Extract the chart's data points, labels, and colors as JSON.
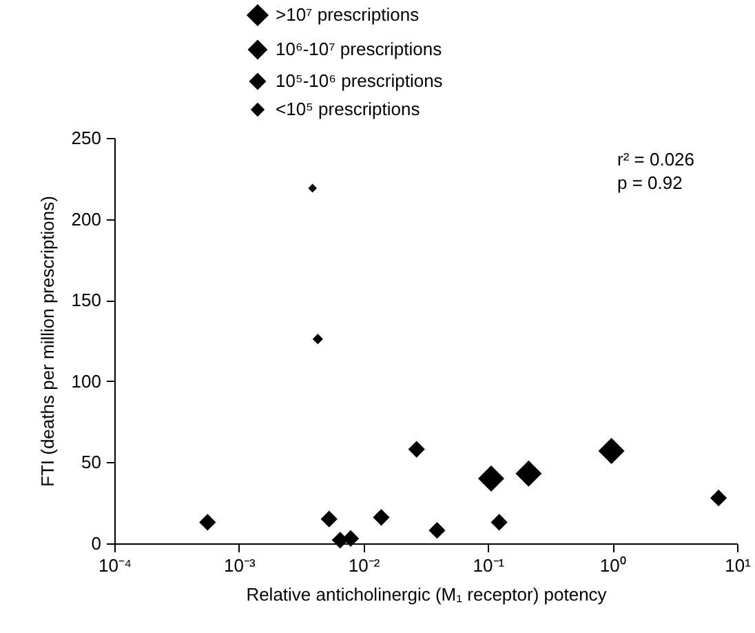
{
  "chart_data": {
    "type": "scatter",
    "xlabel": "Relative anticholinergic (M₁ receptor) potency",
    "ylabel": "FTI (deaths per million prescriptions)",
    "log": "x",
    "xlim": [
      0.0001,
      10
    ],
    "ylim": [
      0,
      250
    ],
    "xticks": [
      {
        "value": 0.0001,
        "label": "10⁻⁴"
      },
      {
        "value": 0.001,
        "label": "10⁻³"
      },
      {
        "value": 0.01,
        "label": "10⁻²"
      },
      {
        "value": 0.1,
        "label": "10⁻¹"
      },
      {
        "value": 1,
        "label": "10⁰"
      },
      {
        "value": 10,
        "label": "10¹"
      }
    ],
    "yticks": [
      0,
      50,
      100,
      150,
      200,
      250
    ],
    "marker": "diamond",
    "legend": "top",
    "grid": false,
    "annotations": [
      "r² = 0.026",
      "p = 0.92"
    ],
    "series": [
      {
        "name": ">10⁷ prescriptions",
        "color": "#000000",
        "sizes": [
          1,
          1,
          1
        ],
        "x": [
          0.106,
          0.212,
          0.98
        ],
        "values": [
          40,
          43,
          57
        ]
      },
      {
        "name": "10⁶-10⁷ prescriptions",
        "color": "#000000",
        "sizes": [
          0.4,
          0.4,
          0.4,
          0.4,
          0.4,
          0.4,
          0.4,
          0.4,
          0.4
        ],
        "x": [
          0.00056,
          0.0053,
          0.0065,
          0.0079,
          0.0139,
          0.0267,
          0.039,
          0.123,
          7.1
        ],
        "values": [
          13,
          15,
          2,
          3,
          16,
          58,
          8,
          13,
          28
        ]
      },
      {
        "name": "10⁵-10⁶ prescriptions",
        "color": "#000000",
        "sizes": [
          0.15
        ],
        "x": [
          0.0043
        ],
        "values": [
          126
        ]
      },
      {
        "name": "<10⁵ prescriptions",
        "color": "#000000",
        "sizes": [
          0.1
        ],
        "x": [
          0.0039
        ],
        "values": [
          219
        ]
      }
    ]
  }
}
